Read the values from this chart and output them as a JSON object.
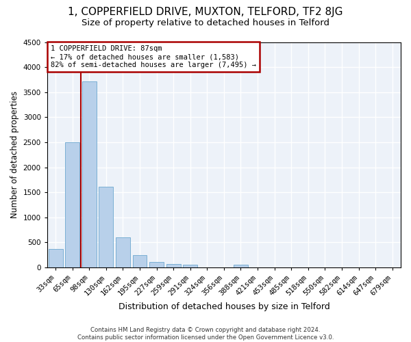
{
  "title": "1, COPPERFIELD DRIVE, MUXTON, TELFORD, TF2 8JG",
  "subtitle": "Size of property relative to detached houses in Telford",
  "xlabel": "Distribution of detached houses by size in Telford",
  "ylabel": "Number of detached properties",
  "footer_line1": "Contains HM Land Registry data © Crown copyright and database right 2024.",
  "footer_line2": "Contains public sector information licensed under the Open Government Licence v3.0.",
  "categories": [
    "33sqm",
    "65sqm",
    "98sqm",
    "130sqm",
    "162sqm",
    "195sqm",
    "227sqm",
    "259sqm",
    "291sqm",
    "324sqm",
    "356sqm",
    "388sqm",
    "421sqm",
    "453sqm",
    "485sqm",
    "518sqm",
    "550sqm",
    "582sqm",
    "614sqm",
    "647sqm",
    "679sqm"
  ],
  "values": [
    375,
    2500,
    3720,
    1615,
    600,
    245,
    110,
    75,
    50,
    0,
    0,
    60,
    0,
    0,
    0,
    0,
    0,
    0,
    0,
    0,
    0
  ],
  "bar_color": "#b8d0ea",
  "bar_edge_color": "#7aafd4",
  "ylim": [
    0,
    4500
  ],
  "yticks": [
    0,
    500,
    1000,
    1500,
    2000,
    2500,
    3000,
    3500,
    4000,
    4500
  ],
  "property_line_color": "#aa0000",
  "annotation_text": "1 COPPERFIELD DRIVE: 87sqm\n← 17% of detached houses are smaller (1,583)\n82% of semi-detached houses are larger (7,495) →",
  "annotation_box_color": "#aa0000",
  "background_color": "#edf2f9",
  "grid_color": "#ffffff",
  "title_fontsize": 11,
  "subtitle_fontsize": 9.5,
  "axis_label_fontsize": 8.5,
  "tick_fontsize": 7.5
}
